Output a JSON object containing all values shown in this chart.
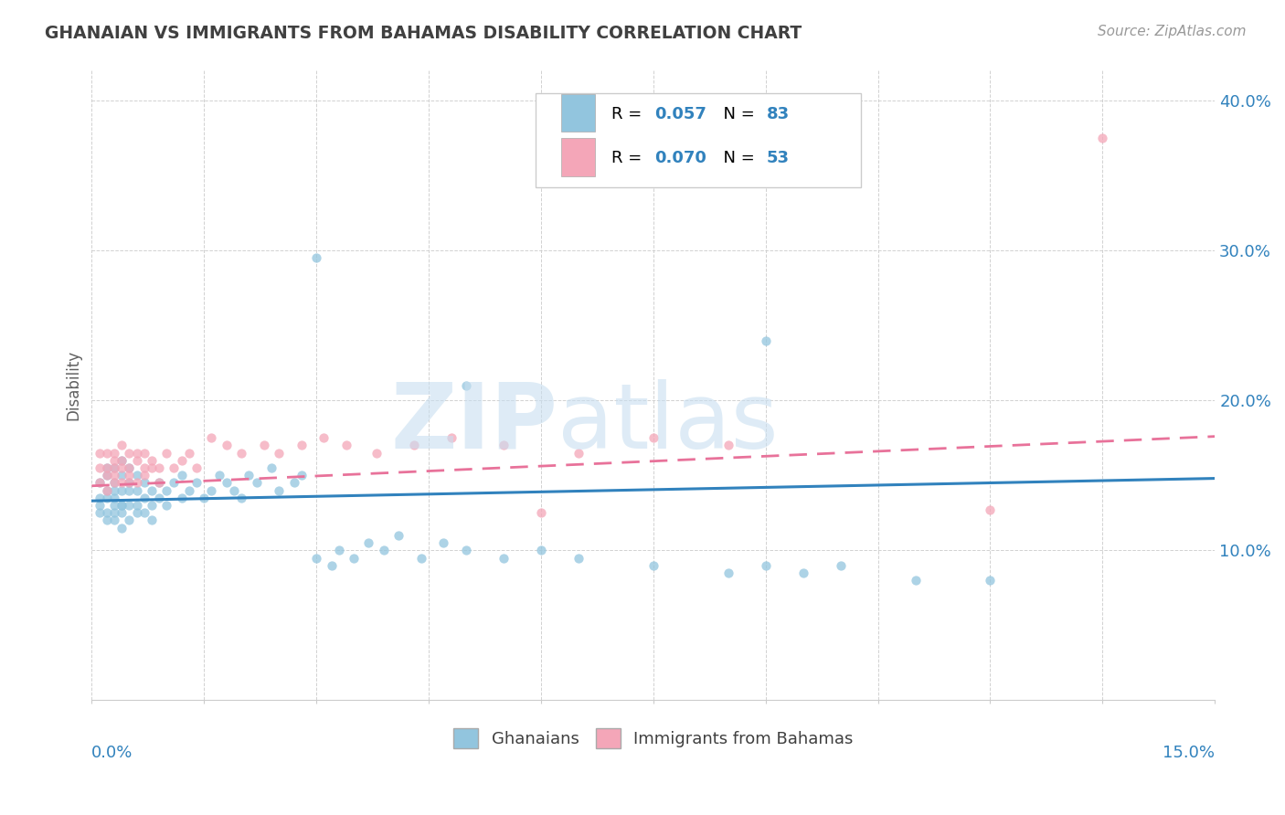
{
  "title": "GHANAIAN VS IMMIGRANTS FROM BAHAMAS DISABILITY CORRELATION CHART",
  "source": "Source: ZipAtlas.com",
  "ylabel": "Disability",
  "xlim": [
    0.0,
    0.15
  ],
  "ylim": [
    0.0,
    0.42
  ],
  "yticks": [
    0.1,
    0.2,
    0.3,
    0.4
  ],
  "ytick_labels": [
    "10.0%",
    "20.0%",
    "30.0%",
    "40.0%"
  ],
  "color_blue": "#92c5de",
  "color_pink": "#f4a6b8",
  "color_blue_line": "#3182bd",
  "color_pink_line": "#e8729a",
  "color_blue_text": "#3182bd",
  "title_color": "#404040",
  "source_color": "#999999",
  "legend_r1": "0.057",
  "legend_n1": "83",
  "legend_r2": "0.070",
  "legend_n2": "53",
  "ghanaian_x": [
    0.001,
    0.001,
    0.001,
    0.001,
    0.002,
    0.002,
    0.002,
    0.002,
    0.002,
    0.002,
    0.003,
    0.003,
    0.003,
    0.003,
    0.003,
    0.003,
    0.003,
    0.004,
    0.004,
    0.004,
    0.004,
    0.004,
    0.004,
    0.004,
    0.005,
    0.005,
    0.005,
    0.005,
    0.005,
    0.006,
    0.006,
    0.006,
    0.006,
    0.007,
    0.007,
    0.007,
    0.008,
    0.008,
    0.008,
    0.009,
    0.009,
    0.01,
    0.01,
    0.011,
    0.012,
    0.012,
    0.013,
    0.014,
    0.015,
    0.016,
    0.017,
    0.018,
    0.019,
    0.02,
    0.021,
    0.022,
    0.024,
    0.025,
    0.027,
    0.028,
    0.03,
    0.032,
    0.033,
    0.035,
    0.037,
    0.039,
    0.041,
    0.044,
    0.047,
    0.05,
    0.055,
    0.06,
    0.065,
    0.075,
    0.085,
    0.09,
    0.095,
    0.1,
    0.11,
    0.12,
    0.09,
    0.05,
    0.03
  ],
  "ghanaian_y": [
    0.135,
    0.13,
    0.145,
    0.125,
    0.14,
    0.15,
    0.12,
    0.135,
    0.155,
    0.125,
    0.13,
    0.14,
    0.155,
    0.125,
    0.135,
    0.12,
    0.145,
    0.13,
    0.15,
    0.125,
    0.14,
    0.115,
    0.16,
    0.13,
    0.145,
    0.13,
    0.12,
    0.14,
    0.155,
    0.13,
    0.14,
    0.125,
    0.15,
    0.135,
    0.145,
    0.125,
    0.14,
    0.13,
    0.12,
    0.135,
    0.145,
    0.14,
    0.13,
    0.145,
    0.135,
    0.15,
    0.14,
    0.145,
    0.135,
    0.14,
    0.15,
    0.145,
    0.14,
    0.135,
    0.15,
    0.145,
    0.155,
    0.14,
    0.145,
    0.15,
    0.095,
    0.09,
    0.1,
    0.095,
    0.105,
    0.1,
    0.11,
    0.095,
    0.105,
    0.1,
    0.095,
    0.1,
    0.095,
    0.09,
    0.085,
    0.09,
    0.085,
    0.09,
    0.08,
    0.08,
    0.24,
    0.21,
    0.295
  ],
  "bahamas_x": [
    0.001,
    0.001,
    0.001,
    0.002,
    0.002,
    0.002,
    0.002,
    0.003,
    0.003,
    0.003,
    0.003,
    0.003,
    0.004,
    0.004,
    0.004,
    0.004,
    0.005,
    0.005,
    0.005,
    0.005,
    0.006,
    0.006,
    0.006,
    0.007,
    0.007,
    0.007,
    0.008,
    0.008,
    0.009,
    0.009,
    0.01,
    0.011,
    0.012,
    0.013,
    0.014,
    0.016,
    0.018,
    0.02,
    0.023,
    0.025,
    0.028,
    0.031,
    0.034,
    0.038,
    0.043,
    0.048,
    0.055,
    0.065,
    0.075,
    0.085,
    0.06,
    0.12,
    0.135
  ],
  "bahamas_y": [
    0.155,
    0.145,
    0.165,
    0.15,
    0.14,
    0.165,
    0.155,
    0.16,
    0.145,
    0.165,
    0.15,
    0.155,
    0.16,
    0.145,
    0.17,
    0.155,
    0.15,
    0.165,
    0.145,
    0.155,
    0.16,
    0.145,
    0.165,
    0.155,
    0.15,
    0.165,
    0.155,
    0.16,
    0.145,
    0.155,
    0.165,
    0.155,
    0.16,
    0.165,
    0.155,
    0.175,
    0.17,
    0.165,
    0.17,
    0.165,
    0.17,
    0.175,
    0.17,
    0.165,
    0.17,
    0.175,
    0.17,
    0.165,
    0.175,
    0.17,
    0.125,
    0.127,
    0.375
  ]
}
